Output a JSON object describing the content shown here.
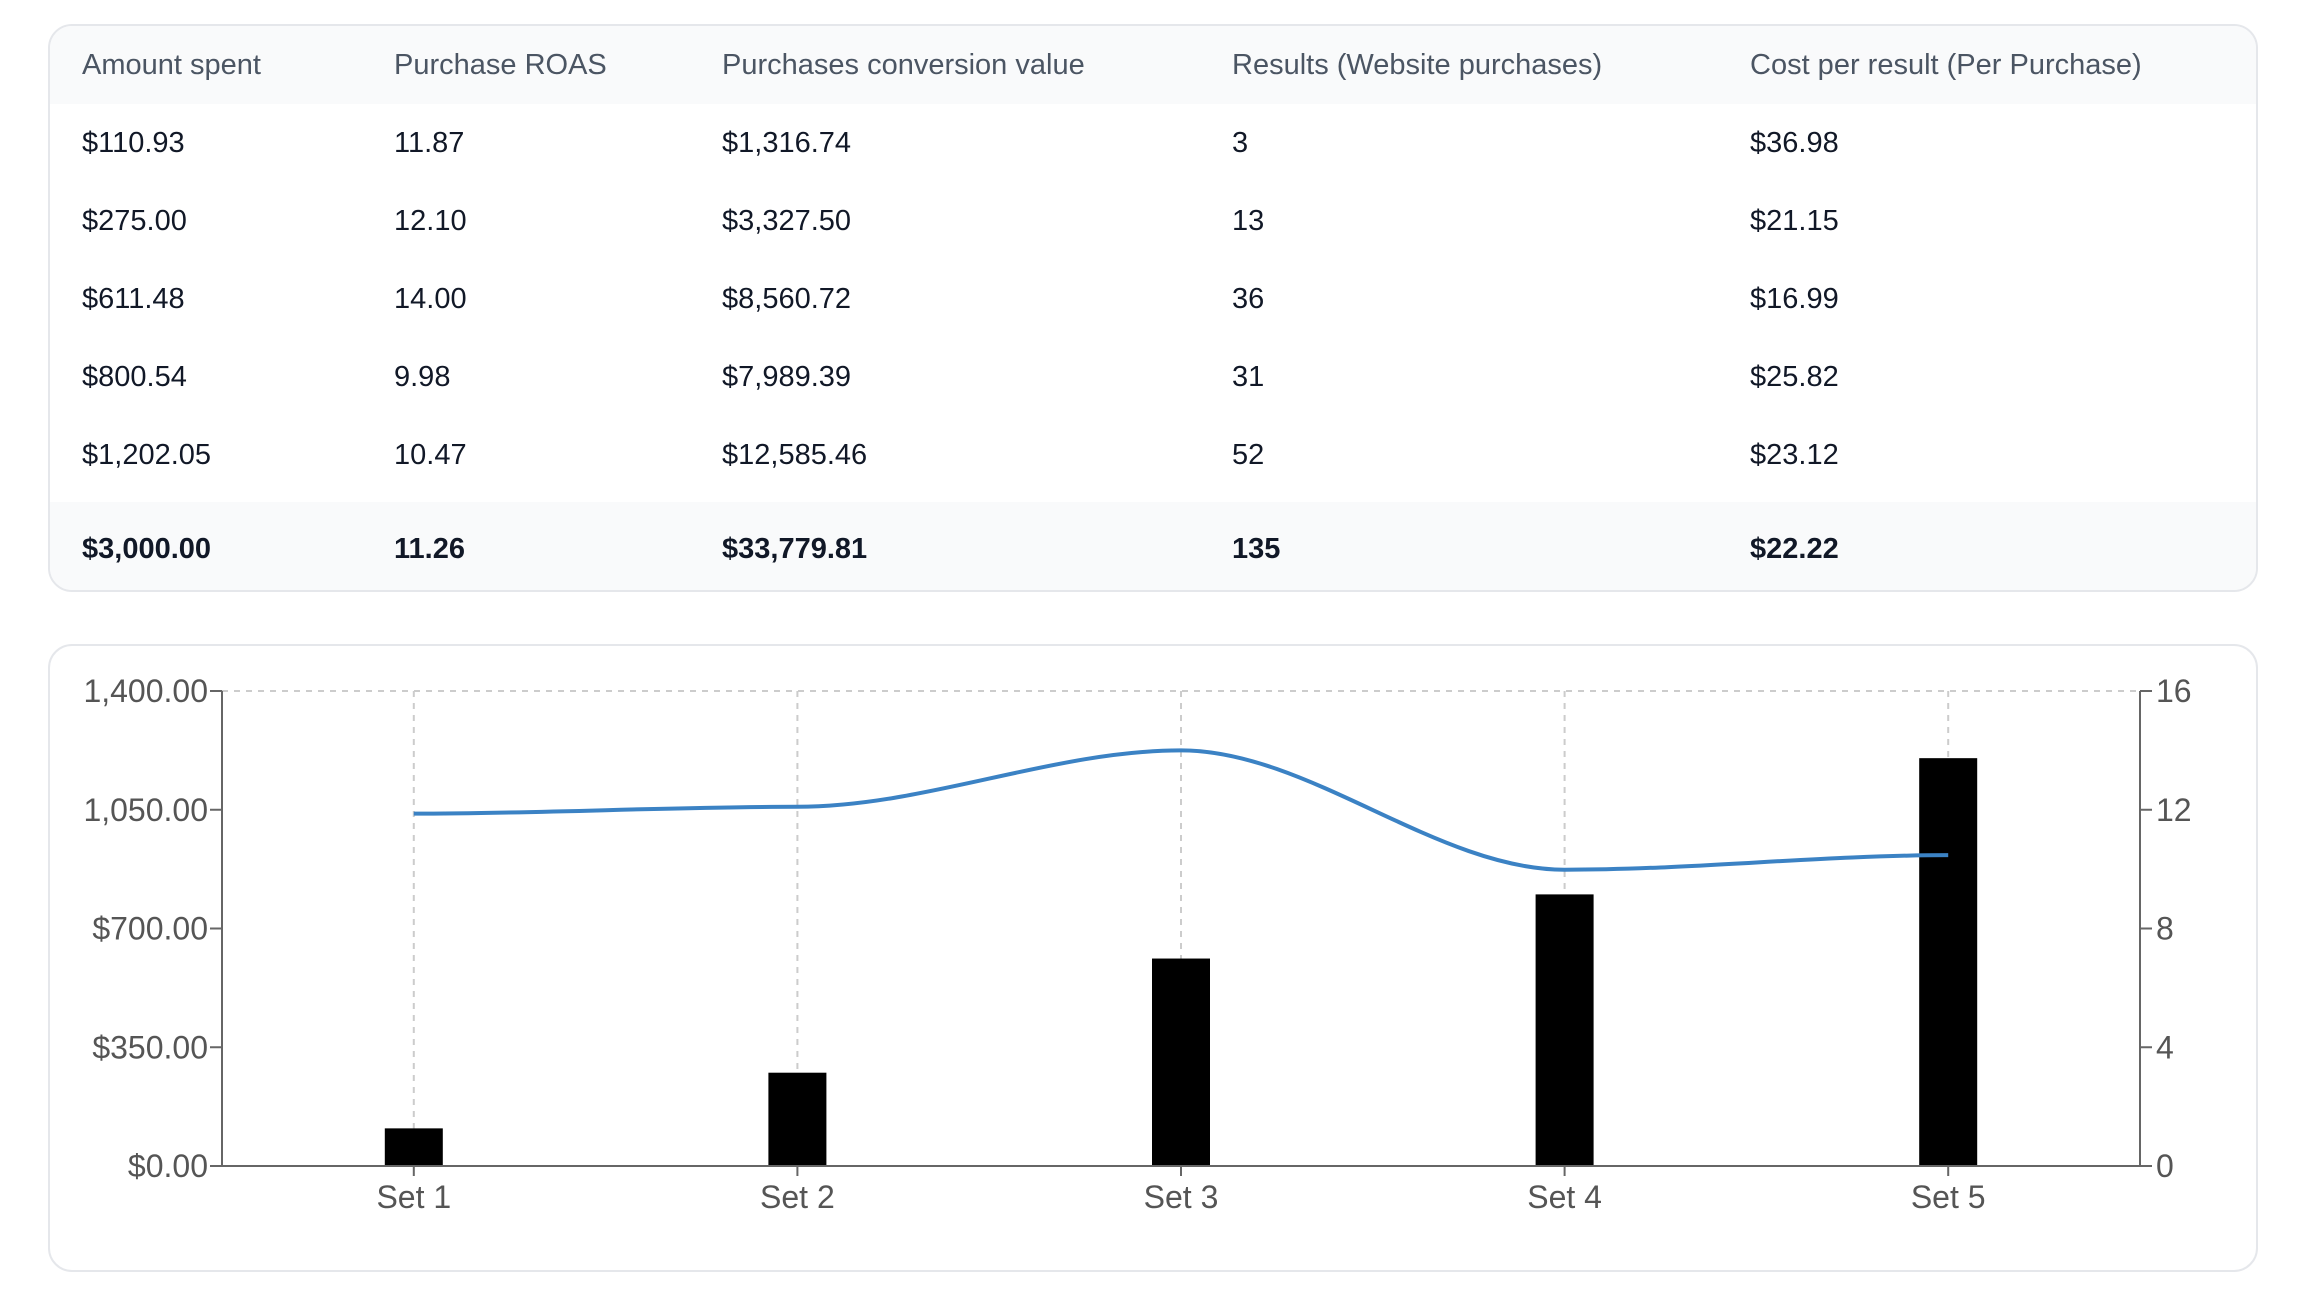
{
  "table": {
    "headers": [
      "Amount spent",
      "Purchase ROAS",
      "Purchases conversion value",
      "Results (Website purchases)",
      "Cost per result (Per Purchase)"
    ],
    "rows": [
      [
        "$110.93",
        "11.87",
        "$1,316.74",
        "3",
        "$36.98"
      ],
      [
        "$275.00",
        "12.10",
        "$3,327.50",
        "13",
        "$21.15"
      ],
      [
        "$611.48",
        "14.00",
        "$8,560.72",
        "36",
        "$16.99"
      ],
      [
        "$800.54",
        "9.98",
        "$7,989.39",
        "31",
        "$25.82"
      ],
      [
        "$1,202.05",
        "10.47",
        "$12,585.46",
        "52",
        "$23.12"
      ]
    ],
    "totals": [
      "$3,000.00",
      "11.26",
      "$33,779.81",
      "135",
      "$22.22"
    ]
  },
  "chart_data": {
    "type": "bar",
    "categories": [
      "Set 1",
      "Set 2",
      "Set 3",
      "Set 4",
      "Set 5"
    ],
    "series": [
      {
        "type": "bar",
        "axis": "left",
        "values": [
          110.93,
          275.0,
          611.48,
          800.54,
          1202.05
        ],
        "color": "#000000"
      },
      {
        "type": "line",
        "axis": "right",
        "values": [
          11.87,
          12.1,
          14.0,
          9.98,
          10.47
        ],
        "color": "#3b82c4"
      }
    ],
    "y_left": {
      "min": 0,
      "max": 1400,
      "ticks": [
        "$0.00",
        "$350.00",
        "$700.00",
        "1,050.00",
        "1,400.00"
      ]
    },
    "y_right": {
      "min": 0,
      "max": 16,
      "ticks": [
        "0",
        "4",
        "8",
        "12",
        "16"
      ]
    },
    "grid": "vertical dashed",
    "legend": "none"
  }
}
